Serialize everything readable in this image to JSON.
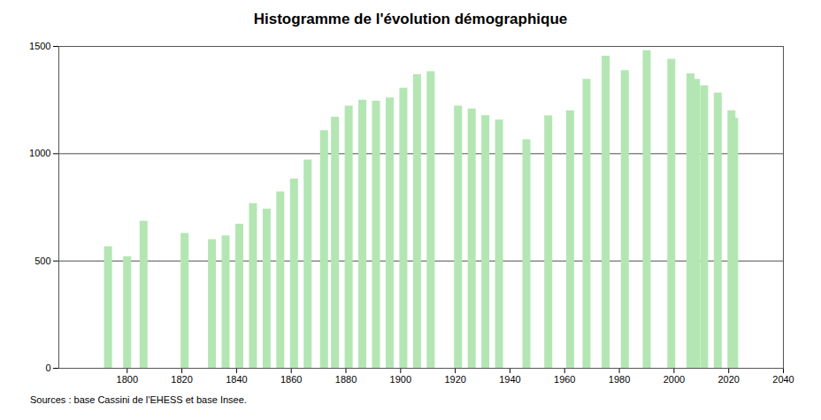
{
  "chart_data": {
    "type": "bar",
    "title": "Histogramme de l'évolution démographique",
    "caption": "Sources : base Cassini de l'EHESS et base Insee.",
    "x": [
      1793,
      1800,
      1806,
      1821,
      1831,
      1836,
      1841,
      1846,
      1851,
      1856,
      1861,
      1866,
      1872,
      1876,
      1881,
      1886,
      1891,
      1896,
      1901,
      1906,
      1911,
      1921,
      1926,
      1931,
      1936,
      1946,
      1954,
      1962,
      1968,
      1975,
      1982,
      1990,
      1999,
      2006,
      2008,
      2011,
      2016,
      2021,
      2022
    ],
    "values": [
      567,
      520,
      685,
      628,
      600,
      617,
      672,
      767,
      742,
      822,
      882,
      970,
      1108,
      1170,
      1222,
      1250,
      1245,
      1260,
      1305,
      1368,
      1383,
      1222,
      1208,
      1178,
      1157,
      1065,
      1177,
      1200,
      1347,
      1455,
      1388,
      1480,
      1440,
      1372,
      1347,
      1317,
      1283,
      1200,
      1165
    ],
    "color": "#b3e6b3",
    "xlim": [
      1775,
      2040
    ],
    "xticks": [
      1800,
      1820,
      1840,
      1860,
      1880,
      1900,
      1920,
      1940,
      1960,
      1980,
      2000,
      2020,
      2040
    ],
    "ylim": [
      0,
      1500
    ],
    "yticks": [
      0,
      500,
      1000,
      1500
    ],
    "grid": true
  }
}
